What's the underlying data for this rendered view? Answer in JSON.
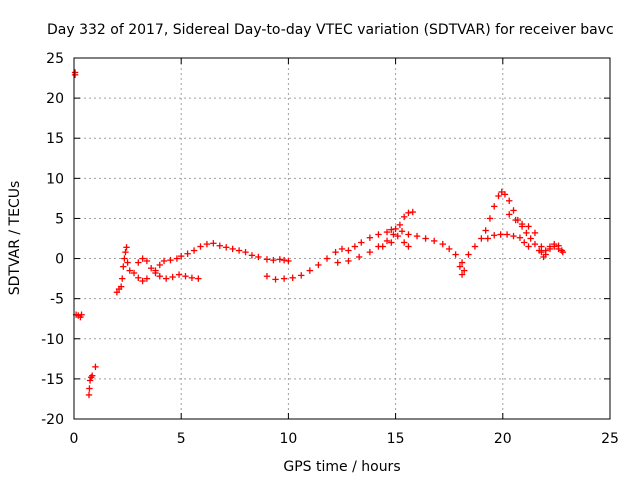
{
  "chart_data": {
    "type": "scatter",
    "title": "Day 332 of 2017, Sidereal Day-to-day VTEC variation (SDTVAR) for receiver bavc",
    "xlabel": "GPS time / hours",
    "ylabel": "SDTVAR / TECUs",
    "xlim": [
      0,
      25
    ],
    "ylim": [
      -20,
      25
    ],
    "xticks": [
      "0",
      "5",
      "10",
      "15",
      "20",
      "25"
    ],
    "yticks": [
      "25",
      "20",
      "15",
      "10",
      "5",
      "0",
      "-5",
      "-10",
      "-15",
      "-20"
    ],
    "grid": true,
    "marker": "+",
    "color": "#ff0000",
    "series": [
      {
        "name": "SDTVAR",
        "points": [
          [
            0.05,
            23.2
          ],
          [
            0.05,
            22.9
          ],
          [
            0.1,
            -7.0
          ],
          [
            0.2,
            -7.1
          ],
          [
            0.3,
            -7.3
          ],
          [
            0.35,
            -7.0
          ],
          [
            0.7,
            -17.0
          ],
          [
            0.72,
            -16.2
          ],
          [
            0.75,
            -15.2
          ],
          [
            0.8,
            -14.8
          ],
          [
            0.85,
            -14.6
          ],
          [
            1.0,
            -13.5
          ],
          [
            2.0,
            -4.2
          ],
          [
            2.1,
            -3.8
          ],
          [
            2.2,
            -3.5
          ],
          [
            2.25,
            -2.5
          ],
          [
            2.3,
            -1.0
          ],
          [
            2.35,
            0.0
          ],
          [
            2.4,
            0.8
          ],
          [
            2.45,
            1.4
          ],
          [
            2.5,
            -0.5
          ],
          [
            2.6,
            -1.5
          ],
          [
            2.8,
            -1.8
          ],
          [
            3.0,
            -0.5
          ],
          [
            3.2,
            0.0
          ],
          [
            3.4,
            -0.3
          ],
          [
            3.6,
            -1.2
          ],
          [
            3.8,
            -1.5
          ],
          [
            4.0,
            -0.8
          ],
          [
            4.2,
            -0.3
          ],
          [
            4.5,
            -0.2
          ],
          [
            4.8,
            0.0
          ],
          [
            5.0,
            0.3
          ],
          [
            5.3,
            0.6
          ],
          [
            5.6,
            1.0
          ],
          [
            5.9,
            1.5
          ],
          [
            6.2,
            1.8
          ],
          [
            6.5,
            1.9
          ],
          [
            6.8,
            1.6
          ],
          [
            7.1,
            1.4
          ],
          [
            7.4,
            1.2
          ],
          [
            7.7,
            1.0
          ],
          [
            8.0,
            0.8
          ],
          [
            8.3,
            0.4
          ],
          [
            8.6,
            0.2
          ],
          [
            9.0,
            -0.1
          ],
          [
            9.3,
            -0.2
          ],
          [
            9.6,
            -0.1
          ],
          [
            9.8,
            -0.2
          ],
          [
            10.0,
            -0.3
          ],
          [
            3.0,
            -2.4
          ],
          [
            3.2,
            -2.8
          ],
          [
            3.4,
            -2.5
          ],
          [
            3.8,
            -1.8
          ],
          [
            4.0,
            -2.2
          ],
          [
            4.3,
            -2.5
          ],
          [
            4.6,
            -2.3
          ],
          [
            4.9,
            -2.0
          ],
          [
            5.2,
            -2.2
          ],
          [
            5.5,
            -2.4
          ],
          [
            5.8,
            -2.5
          ],
          [
            9.0,
            -2.2
          ],
          [
            9.4,
            -2.6
          ],
          [
            9.8,
            -2.5
          ],
          [
            10.2,
            -2.4
          ],
          [
            10.6,
            -2.1
          ],
          [
            11.0,
            -1.5
          ],
          [
            11.4,
            -0.8
          ],
          [
            11.8,
            0.0
          ],
          [
            12.2,
            0.8
          ],
          [
            12.5,
            1.2
          ],
          [
            12.8,
            1.0
          ],
          [
            13.1,
            1.5
          ],
          [
            13.4,
            2.0
          ],
          [
            13.8,
            2.6
          ],
          [
            14.2,
            3.0
          ],
          [
            14.6,
            3.3
          ],
          [
            14.8,
            3.6
          ],
          [
            15.0,
            3.7
          ],
          [
            15.3,
            3.4
          ],
          [
            15.6,
            3.0
          ],
          [
            16.0,
            2.8
          ],
          [
            16.4,
            2.5
          ],
          [
            16.8,
            2.2
          ],
          [
            17.2,
            1.8
          ],
          [
            17.5,
            1.2
          ],
          [
            17.8,
            0.5
          ],
          [
            18.0,
            -1.0
          ],
          [
            18.1,
            -2.0
          ],
          [
            18.2,
            -1.5
          ],
          [
            12.3,
            -0.5
          ],
          [
            12.8,
            -0.3
          ],
          [
            13.3,
            0.2
          ],
          [
            13.8,
            0.8
          ],
          [
            14.2,
            1.5
          ],
          [
            14.6,
            2.2
          ],
          [
            14.9,
            3.0
          ],
          [
            15.2,
            4.2
          ],
          [
            15.4,
            5.2
          ],
          [
            15.6,
            5.7
          ],
          [
            15.8,
            5.8
          ],
          [
            14.4,
            1.5
          ],
          [
            14.8,
            2.0
          ],
          [
            15.1,
            2.8
          ],
          [
            15.4,
            2.0
          ],
          [
            15.6,
            1.5
          ],
          [
            18.1,
            -0.5
          ],
          [
            18.4,
            0.5
          ],
          [
            18.7,
            1.5
          ],
          [
            19.0,
            2.5
          ],
          [
            19.2,
            3.5
          ],
          [
            19.4,
            5.0
          ],
          [
            19.6,
            6.5
          ],
          [
            19.8,
            7.8
          ],
          [
            19.95,
            8.3
          ],
          [
            20.1,
            8.0
          ],
          [
            20.3,
            7.2
          ],
          [
            20.5,
            6.0
          ],
          [
            20.7,
            4.8
          ],
          [
            20.9,
            4.0
          ],
          [
            21.1,
            3.2
          ],
          [
            21.3,
            2.5
          ],
          [
            21.5,
            1.8
          ],
          [
            21.7,
            1.0
          ],
          [
            21.9,
            0.2
          ],
          [
            19.3,
            2.5
          ],
          [
            19.6,
            2.9
          ],
          [
            19.9,
            3.0
          ],
          [
            20.2,
            3.0
          ],
          [
            20.5,
            2.8
          ],
          [
            20.8,
            2.6
          ],
          [
            21.0,
            2.0
          ],
          [
            21.2,
            1.5
          ],
          [
            20.3,
            5.5
          ],
          [
            20.6,
            4.8
          ],
          [
            20.9,
            4.3
          ],
          [
            21.2,
            4.0
          ],
          [
            21.5,
            3.2
          ],
          [
            21.8,
            1.5
          ],
          [
            22.0,
            0.5
          ],
          [
            22.2,
            1.2
          ],
          [
            22.4,
            1.5
          ],
          [
            22.6,
            1.2
          ],
          [
            22.8,
            0.8
          ],
          [
            21.8,
            0.8
          ],
          [
            22.0,
            1.0
          ],
          [
            22.2,
            1.5
          ],
          [
            22.4,
            1.8
          ],
          [
            22.6,
            1.6
          ],
          [
            22.75,
            1.0
          ]
        ]
      }
    ]
  }
}
